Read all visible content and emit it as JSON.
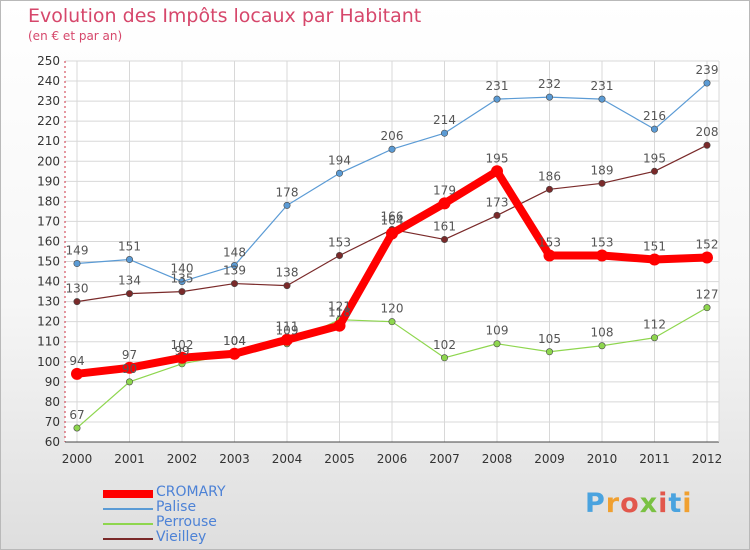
{
  "title": "Evolution des Impôts locaux par Habitant",
  "subtitle": "(en € et par an)",
  "logo": {
    "letters": [
      "P",
      "r",
      "o",
      "x",
      "i",
      "t",
      "i"
    ]
  },
  "chart_data": {
    "type": "line",
    "x": [
      "2000",
      "2001",
      "2002",
      "2003",
      "2004",
      "2005",
      "2006",
      "2007",
      "2008",
      "2009",
      "2010",
      "2011",
      "2012"
    ],
    "ylim": [
      60,
      250
    ],
    "yticks": [
      60,
      70,
      80,
      90,
      100,
      110,
      120,
      130,
      140,
      150,
      160,
      170,
      180,
      190,
      200,
      210,
      220,
      230,
      240,
      250
    ],
    "grid": true,
    "legend_position": "bottom-left",
    "series": [
      {
        "name": "Palise",
        "color": "#5b9bd5",
        "values": [
          149,
          151,
          140,
          148,
          178,
          194,
          206,
          214,
          231,
          232,
          231,
          216,
          239
        ]
      },
      {
        "name": "Vieilley",
        "color": "#7a2a2a",
        "values": [
          130,
          134,
          135,
          139,
          138,
          153,
          166,
          161,
          173,
          186,
          189,
          195,
          208
        ]
      },
      {
        "name": "Perrouse",
        "color": "#8ed64e",
        "values": [
          67,
          90,
          99,
          104,
          109,
          121,
          120,
          102,
          109,
          105,
          108,
          112,
          127
        ]
      },
      {
        "name": "CROMARY",
        "color": "#ff0000",
        "values": [
          94,
          97,
          102,
          104,
          111,
          118,
          164,
          179,
          195,
          153,
          153,
          151,
          152
        ]
      }
    ]
  }
}
